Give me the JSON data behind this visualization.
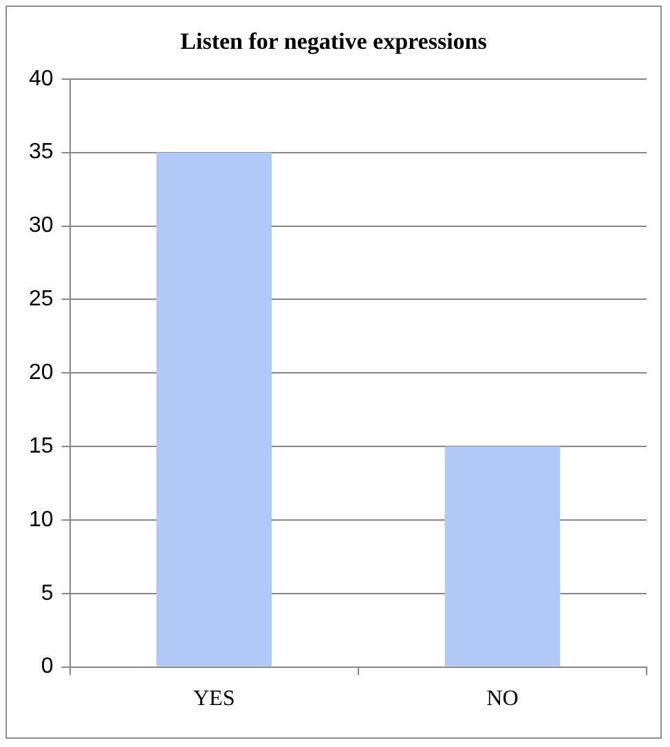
{
  "chart_data": {
    "type": "bar",
    "title": "Listen for negative expressions",
    "categories": [
      "YES",
      "NO"
    ],
    "values": [
      35,
      15
    ],
    "color": "#b0c9f6",
    "ylim": [
      0,
      40
    ],
    "yticks": [
      0,
      5,
      10,
      15,
      20,
      25,
      30,
      35,
      40
    ],
    "grid": "y",
    "legend": false
  }
}
